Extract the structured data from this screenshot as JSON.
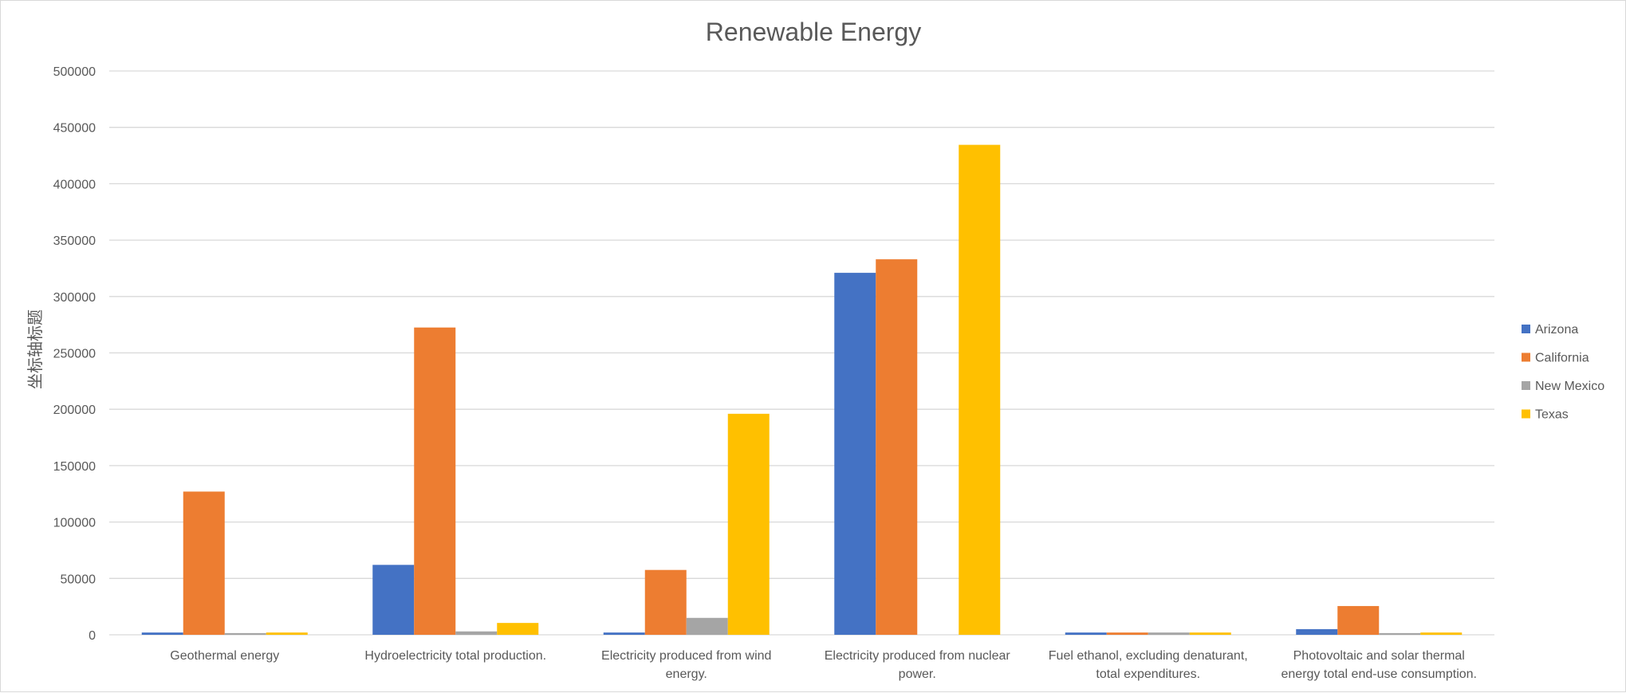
{
  "chart_data": {
    "type": "bar",
    "title": "Renewable Energy",
    "ylabel": "坐标轴标题",
    "xlabel": "",
    "ylim": [
      0,
      500000
    ],
    "yticks": [
      0,
      50000,
      100000,
      150000,
      200000,
      250000,
      300000,
      350000,
      400000,
      450000,
      500000
    ],
    "grid": true,
    "legend_position": "right",
    "categories": [
      [
        "Geothermal energy"
      ],
      [
        "Hydroelectricity total production."
      ],
      [
        "Electricity produced from wind",
        "energy."
      ],
      [
        "Electricity produced from nuclear",
        "power."
      ],
      [
        "Fuel ethanol, excluding denaturant,",
        "total expenditures."
      ],
      [
        "Photovoltaic and solar thermal",
        "energy total end-use consumption."
      ]
    ],
    "series": [
      {
        "name": "Arizona",
        "color": "#4472C4",
        "values": [
          2000,
          62000,
          2000,
          321000,
          2000,
          5000
        ]
      },
      {
        "name": "California",
        "color": "#ED7D31",
        "values": [
          127000,
          272500,
          57500,
          333000,
          2000,
          25500
        ]
      },
      {
        "name": "New Mexico",
        "color": "#A5A5A5",
        "values": [
          1500,
          3000,
          15000,
          0,
          2000,
          1500
        ]
      },
      {
        "name": "Texas",
        "color": "#FFC000",
        "values": [
          2000,
          10500,
          196000,
          434500,
          2000,
          2000
        ]
      }
    ]
  }
}
